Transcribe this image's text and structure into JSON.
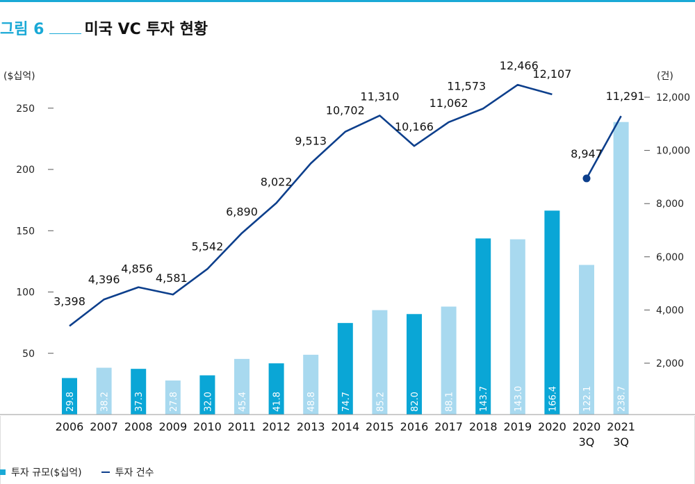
{
  "figure": {
    "number": "그림 6",
    "title": "미국 VC 투자 현황"
  },
  "legend": {
    "bar_label": "투자 규모($십억)",
    "line_label": "투자 건수"
  },
  "colors": {
    "accent": "#1aa9d6",
    "bar_dark": "#0aa6d6",
    "bar_light": "#a8d9ef",
    "line": "#0d3f8c"
  },
  "chart_data": {
    "type": "bar",
    "categories": [
      "2006",
      "2007",
      "2008",
      "2009",
      "2010",
      "2011",
      "2012",
      "2013",
      "2014",
      "2015",
      "2016",
      "2017",
      "2018",
      "2019",
      "2020",
      "2020\n3Q",
      "2021\n3Q"
    ],
    "series": [
      {
        "name": "투자 규모($십억)",
        "type": "bar",
        "axis": "left",
        "values": [
          29.8,
          38.2,
          37.3,
          27.8,
          32.0,
          45.4,
          41.8,
          48.8,
          74.7,
          85.2,
          82.0,
          88.1,
          143.7,
          143.0,
          166.4,
          122.1,
          238.7
        ],
        "labels": [
          "29.8",
          "38.2",
          "37.3",
          "27.8",
          "32.0",
          "45.4",
          "41.8",
          "48.8",
          "74.7",
          "85.2",
          "82.0",
          "88.1",
          "143.7",
          "143.0",
          "166.4",
          "122.1",
          "238.7"
        ],
        "shade": [
          "dark",
          "light",
          "dark",
          "light",
          "dark",
          "light",
          "dark",
          "light",
          "dark",
          "light",
          "dark",
          "light",
          "dark",
          "light",
          "dark",
          "light",
          "light"
        ]
      },
      {
        "name": "투자 건수",
        "type": "line",
        "axis": "right",
        "values": [
          3398,
          4396,
          4856,
          4581,
          5542,
          6890,
          8022,
          9513,
          10702,
          11310,
          10166,
          11062,
          11573,
          12466,
          12107,
          8947,
          11291
        ],
        "labels": [
          "3,398",
          "4,396",
          "4,856",
          "4,581",
          "5,542",
          "6,890",
          "8,022",
          "9,513",
          "10,702",
          "11,310",
          "10,166",
          "11,062",
          "11,573",
          "12,466",
          "12,107",
          "8,947",
          "11,291"
        ]
      }
    ],
    "y_left": {
      "unit": "($십억)",
      "ticks": [
        "50",
        "100",
        "150",
        "200",
        "250"
      ],
      "tick_values": [
        50,
        100,
        150,
        200,
        250
      ],
      "range": [
        0,
        270
      ]
    },
    "y_right": {
      "unit": "(건)",
      "ticks": [
        "2,000",
        "4,000",
        "6,000",
        "8,000",
        "10,000",
        "12,000"
      ],
      "tick_values": [
        2000,
        4000,
        6000,
        8000,
        10000,
        12000
      ],
      "range": [
        -1100,
        13250
      ]
    },
    "legend_position": "bottom-left",
    "grid": false
  }
}
